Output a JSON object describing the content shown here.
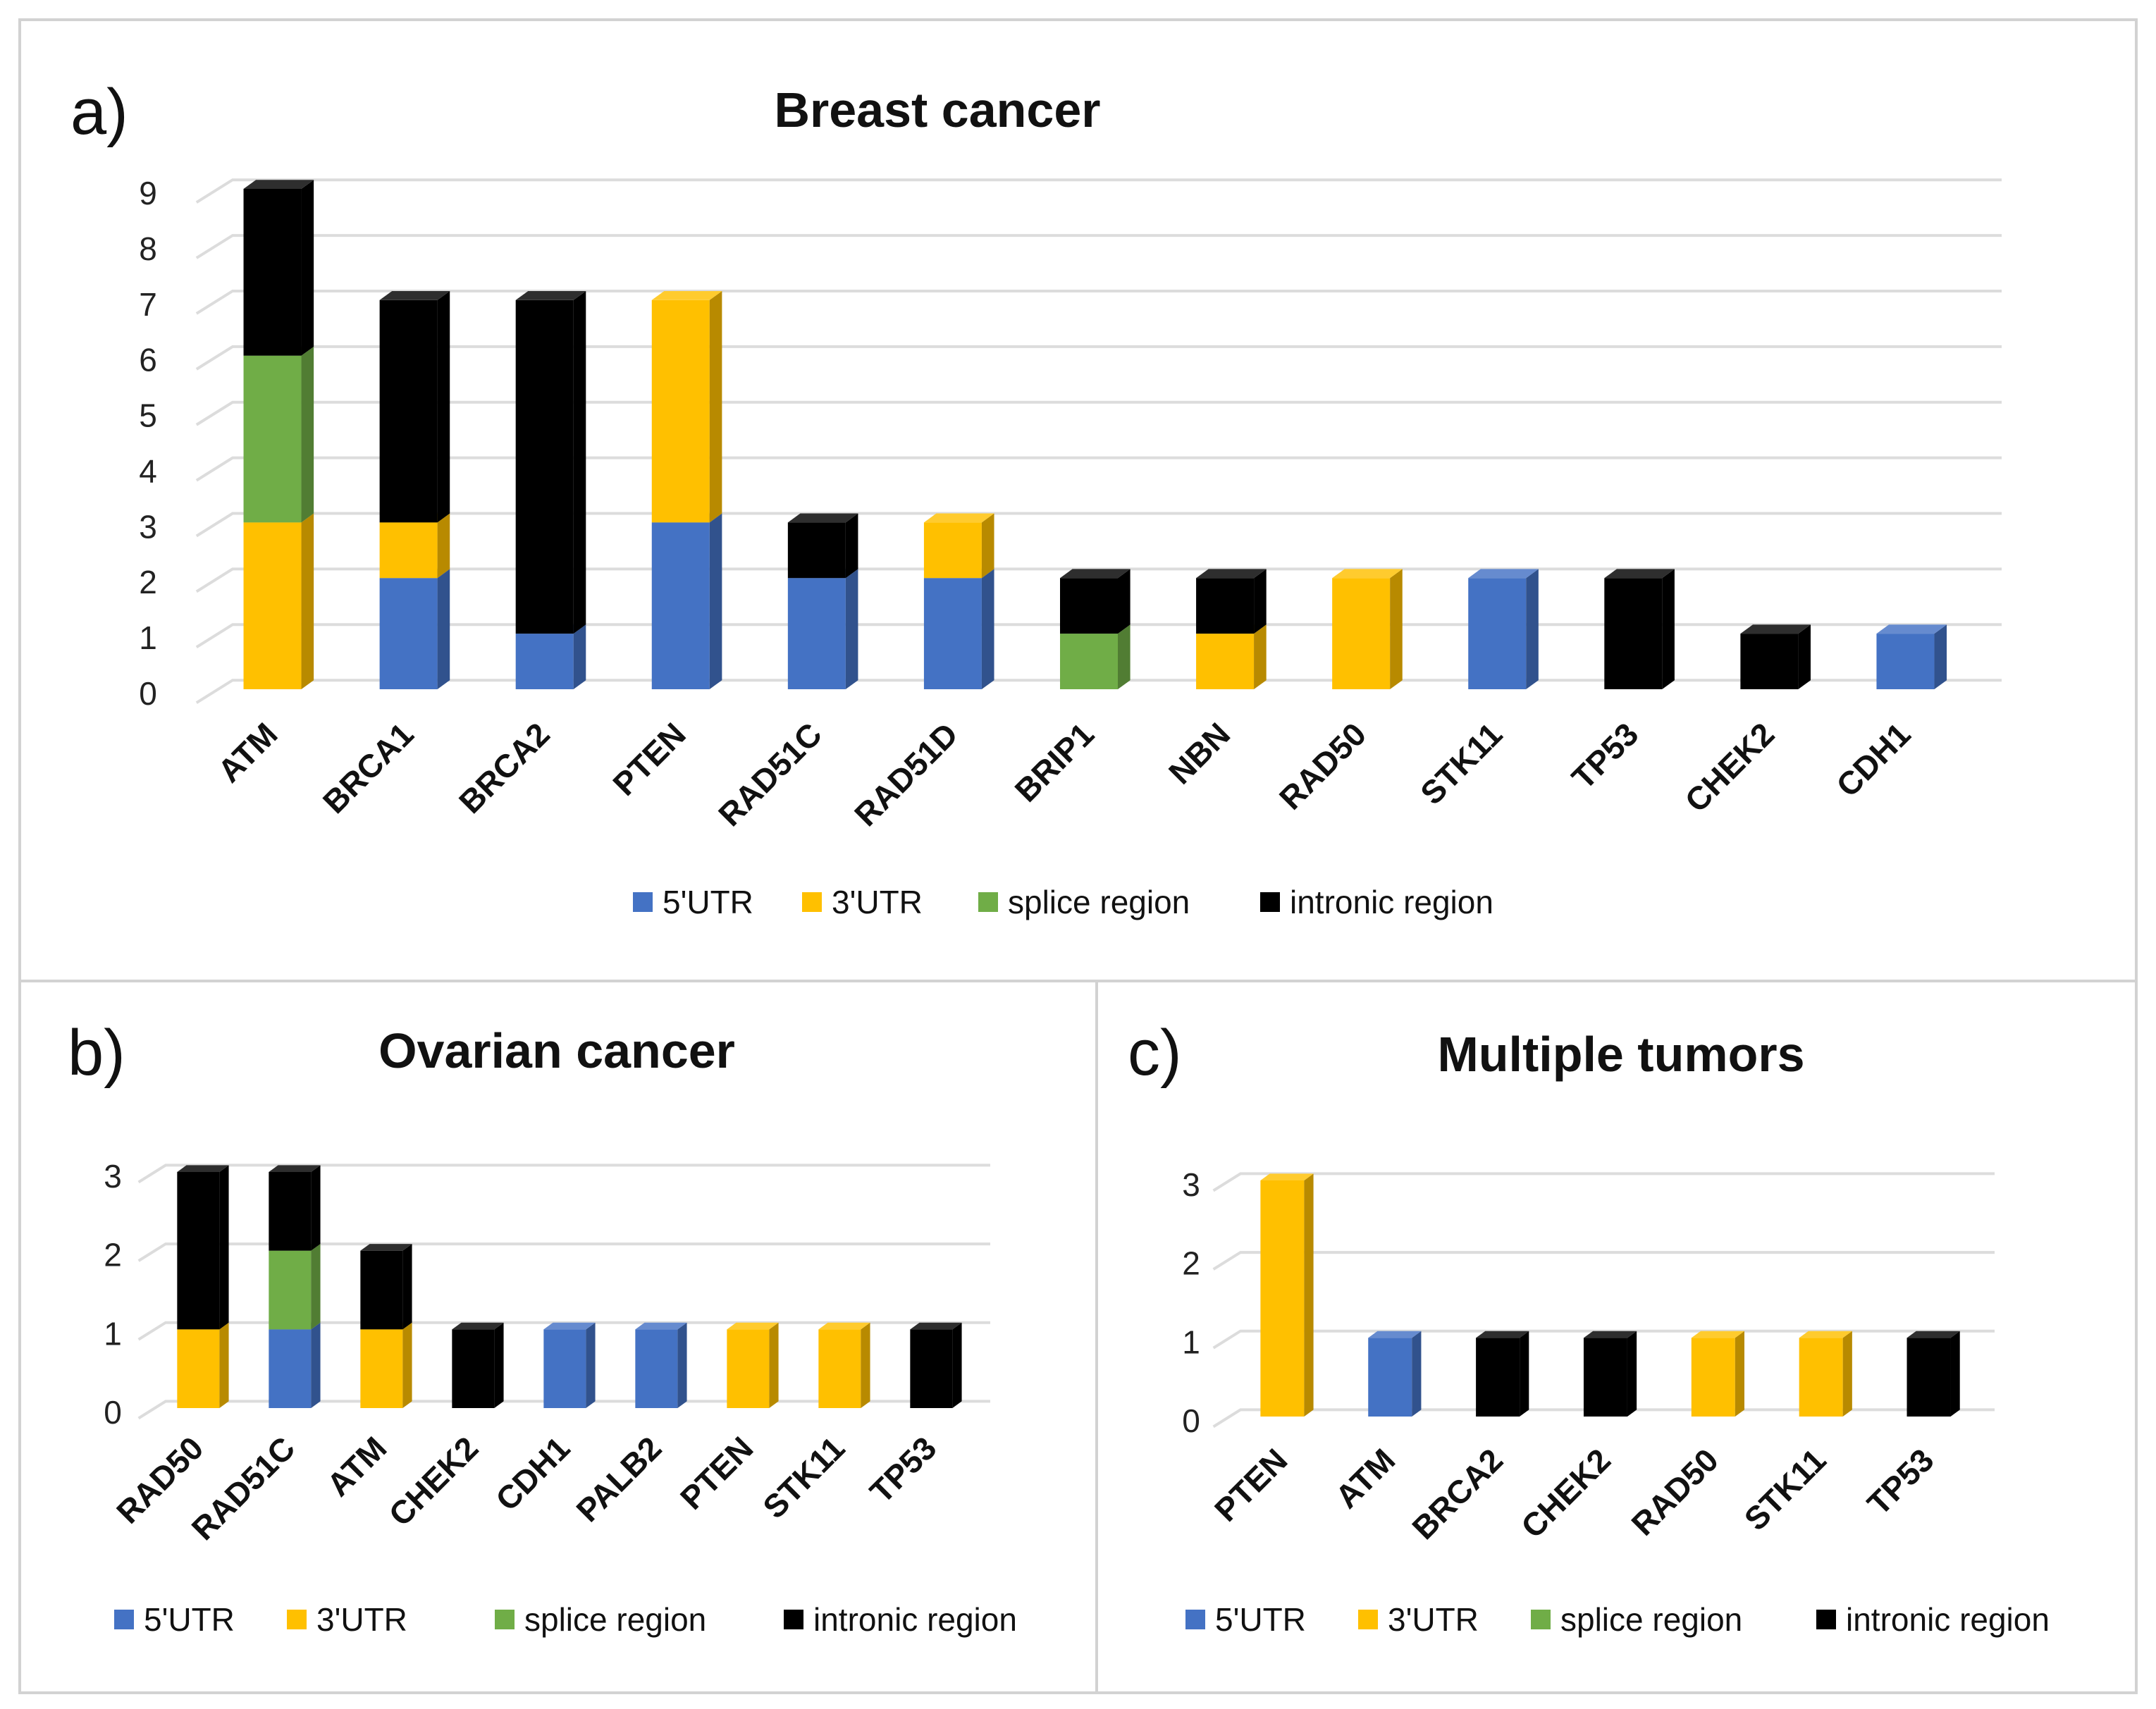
{
  "colors": {
    "5'UTR": "#4472C4",
    "3'UTR": "#FFC000",
    "splice region": "#70AD47",
    "intronic region": "#000000"
  },
  "chart_data": [
    {
      "id": "a",
      "panel_letter": "a)",
      "type": "bar",
      "stacked": true,
      "title": "Breast cancer",
      "xlabel": "",
      "ylabel": "",
      "ylim": [
        0,
        9
      ],
      "yticks": [
        0,
        1,
        2,
        3,
        4,
        5,
        6,
        7,
        8,
        9
      ],
      "legend_position": "bottom",
      "categories": [
        "ATM",
        "BRCA1",
        "BRCA2",
        "PTEN",
        "RAD51C",
        "RAD51D",
        "BRIP1",
        "NBN",
        "RAD50",
        "STK11",
        "TP53",
        "CHEK2",
        "CDH1"
      ],
      "series": [
        {
          "name": "5'UTR",
          "values": [
            0,
            2,
            1,
            3,
            2,
            2,
            0,
            0,
            0,
            2,
            0,
            0,
            1
          ]
        },
        {
          "name": "3'UTR",
          "values": [
            3,
            1,
            0,
            4,
            0,
            1,
            0,
            1,
            2,
            0,
            0,
            0,
            0
          ]
        },
        {
          "name": "splice region",
          "values": [
            3,
            0,
            0,
            0,
            0,
            0,
            1,
            0,
            0,
            0,
            0,
            0,
            0
          ]
        },
        {
          "name": "intronic region",
          "values": [
            3,
            4,
            6,
            0,
            1,
            0,
            1,
            1,
            0,
            0,
            2,
            1,
            0
          ]
        }
      ]
    },
    {
      "id": "b",
      "panel_letter": "b)",
      "type": "bar",
      "stacked": true,
      "title": "Ovarian cancer",
      "xlabel": "",
      "ylabel": "",
      "ylim": [
        0,
        3
      ],
      "yticks": [
        0,
        1,
        2,
        3
      ],
      "legend_position": "bottom",
      "categories": [
        "RAD50",
        "RAD51C",
        "ATM",
        "CHEK2",
        "CDH1",
        "PALB2",
        "PTEN",
        "STK11",
        "TP53"
      ],
      "series": [
        {
          "name": "5'UTR",
          "values": [
            0,
            1,
            0,
            0,
            1,
            1,
            0,
            0,
            0
          ]
        },
        {
          "name": "3'UTR",
          "values": [
            1,
            0,
            1,
            0,
            0,
            0,
            1,
            1,
            0
          ]
        },
        {
          "name": "splice region",
          "values": [
            0,
            1,
            0,
            0,
            0,
            0,
            0,
            0,
            0
          ]
        },
        {
          "name": "intronic region",
          "values": [
            2,
            1,
            1,
            1,
            0,
            0,
            0,
            0,
            1
          ]
        }
      ]
    },
    {
      "id": "c",
      "panel_letter": "c)",
      "type": "bar",
      "stacked": true,
      "title": "Multiple tumors",
      "xlabel": "",
      "ylabel": "",
      "ylim": [
        0,
        3
      ],
      "yticks": [
        0,
        1,
        2,
        3
      ],
      "legend_position": "bottom",
      "categories": [
        "PTEN",
        "ATM",
        "BRCA2",
        "CHEK2",
        "RAD50",
        "STK11",
        "TP53"
      ],
      "series": [
        {
          "name": "5'UTR",
          "values": [
            0,
            1,
            0,
            0,
            0,
            0,
            0
          ]
        },
        {
          "name": "3'UTR",
          "values": [
            3,
            0,
            0,
            0,
            1,
            1,
            0
          ]
        },
        {
          "name": "splice region",
          "values": [
            0,
            0,
            0,
            0,
            0,
            0,
            0
          ]
        },
        {
          "name": "intronic region",
          "values": [
            0,
            0,
            1,
            1,
            0,
            0,
            1
          ]
        }
      ]
    }
  ]
}
